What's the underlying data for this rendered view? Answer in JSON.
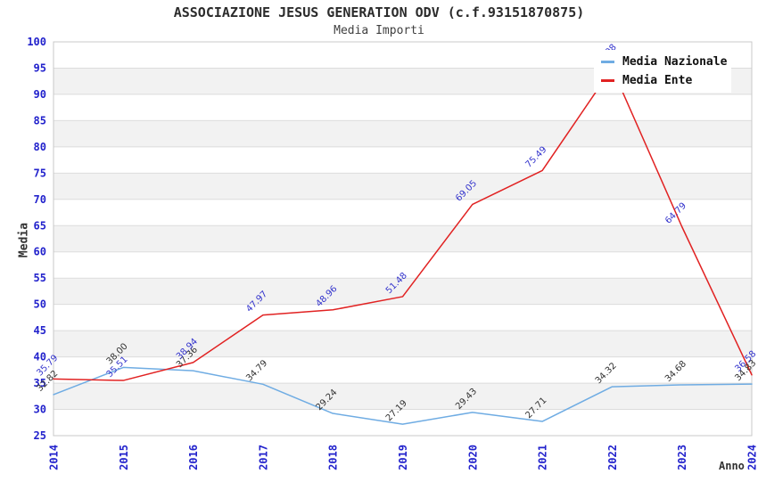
{
  "header": {
    "title": "ASSOCIAZIONE JESUS GENERATION ODV (c.f.93151870875)",
    "subtitle": "Media Importi"
  },
  "chart_data": {
    "type": "line",
    "title": "ASSOCIAZIONE JESUS GENERATION ODV (c.f.93151870875)",
    "subtitle": "Media Importi",
    "xlabel": "Anno",
    "ylabel": "Media",
    "x": [
      2014,
      2015,
      2016,
      2017,
      2018,
      2019,
      2020,
      2021,
      2022,
      2023,
      2024
    ],
    "series": [
      {
        "name": "Media Nazionale",
        "color": "#6face3",
        "label_color": "#333333",
        "values": [
          32.82,
          38.0,
          37.36,
          34.79,
          29.24,
          27.19,
          29.43,
          27.71,
          34.32,
          34.68,
          34.83
        ]
      },
      {
        "name": "Media Ente",
        "color": "#e12222",
        "label_color": "#3333cc",
        "values": [
          35.79,
          35.51,
          38.94,
          47.97,
          48.96,
          51.48,
          69.05,
          75.49,
          94.98,
          64.79,
          36.58
        ]
      }
    ],
    "ylim": [
      25,
      100
    ],
    "ytick_step": 5,
    "grid": true,
    "legend_position": "top-right",
    "styles": {
      "tick_color": "#2222cc",
      "text_color": "#333333",
      "grid_color": "#dcdcdc",
      "border_color": "#c8c8c8",
      "band_color": "#f2f2f2",
      "plot_bg": "#ffffff"
    }
  }
}
